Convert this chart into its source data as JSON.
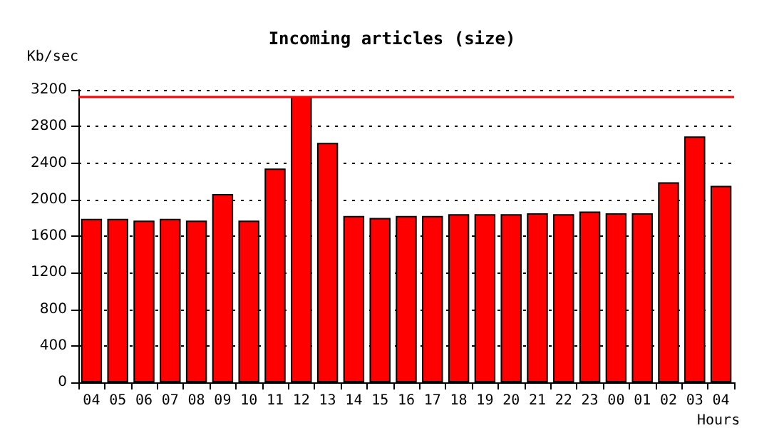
{
  "chart_data": {
    "type": "bar",
    "title": "Incoming articles (size)",
    "xlabel": "Hours",
    "ylabel": "Kb/sec",
    "categories": [
      "04",
      "05",
      "06",
      "07",
      "08",
      "09",
      "10",
      "11",
      "12",
      "13",
      "14",
      "15",
      "16",
      "17",
      "18",
      "19",
      "20",
      "21",
      "22",
      "23",
      "00",
      "01",
      "02",
      "03",
      "04"
    ],
    "series": [
      {
        "color": "#ff0000",
        "values": [
          1790,
          1790,
          1770,
          1790,
          1770,
          2060,
          1770,
          2340,
          3130,
          2620,
          1820,
          1800,
          1820,
          1820,
          1840,
          1840,
          1840,
          1850,
          1840,
          1870,
          1850,
          1850,
          2190,
          2690,
          2150
        ]
      }
    ],
    "ylim": [
      0,
      3200
    ],
    "yticks": [
      0,
      400,
      800,
      1200,
      1600,
      2000,
      2400,
      2800,
      3200
    ],
    "grid": "y",
    "ref_lines": [
      {
        "axis": "y",
        "value": 3130,
        "color": "#ff0000"
      }
    ]
  }
}
